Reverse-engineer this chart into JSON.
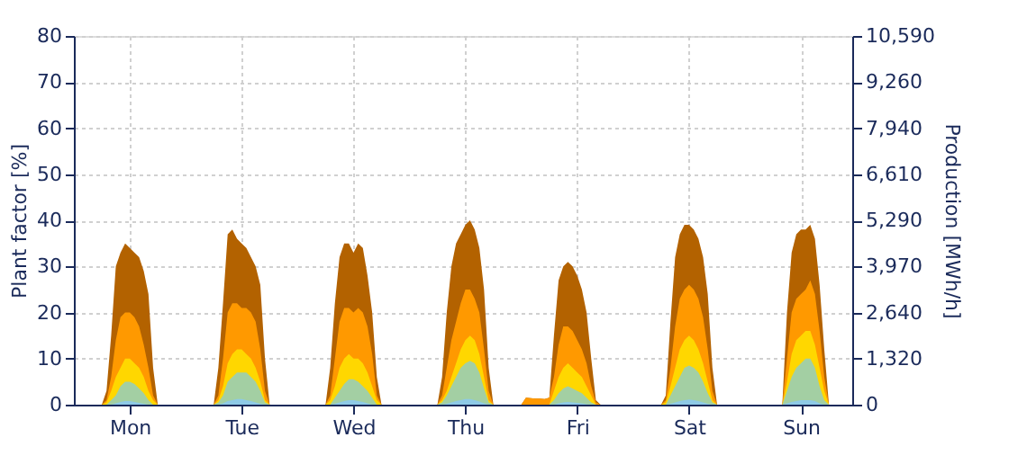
{
  "chart_data": {
    "type": "area",
    "ylabel": "Plant factor [%]",
    "y2label": "Production [MWh/h]",
    "categories": [
      null,
      null,
      null,
      null,
      null,
      null,
      null,
      null,
      null,
      null,
      null,
      null,
      "Mon",
      null,
      null,
      null,
      null,
      null,
      null,
      null,
      null,
      null,
      null,
      null,
      null,
      null,
      null,
      null,
      null,
      null,
      null,
      null,
      null,
      null,
      null,
      null,
      "Tue",
      null,
      null,
      null,
      null,
      null,
      null,
      null,
      null,
      null,
      null,
      null,
      null,
      null,
      null,
      null,
      null,
      null,
      null,
      null,
      null,
      null,
      null,
      null,
      "Wed",
      null,
      null,
      null,
      null,
      null,
      null,
      null,
      null,
      null,
      null,
      null,
      null,
      null,
      null,
      null,
      null,
      null,
      null,
      null,
      null,
      null,
      null,
      null,
      "Thu",
      null,
      null,
      null,
      null,
      null,
      null,
      null,
      null,
      null,
      null,
      null,
      null,
      null,
      null,
      null,
      null,
      null,
      null,
      null,
      null,
      null,
      null,
      null,
      "Fri",
      null,
      null,
      null,
      null,
      null,
      null,
      null,
      null,
      null,
      null,
      null,
      null,
      null,
      null,
      null,
      null,
      null,
      null,
      null,
      null,
      null,
      null,
      null,
      "Sat",
      null,
      null,
      null,
      null,
      null,
      null,
      null,
      null,
      null,
      null,
      null,
      null,
      null,
      null,
      null,
      null,
      null,
      null,
      null,
      null,
      null,
      null,
      null,
      "Sun",
      null,
      null,
      null,
      null,
      null,
      null,
      null,
      null,
      null,
      null,
      null
    ],
    "series": [
      {
        "color": "#b36200",
        "values": [
          0,
          0,
          0,
          0,
          0,
          0,
          0,
          3,
          15,
          30,
          33,
          35,
          34,
          33,
          32,
          29,
          24,
          8,
          0,
          0,
          0,
          0,
          0,
          0,
          0,
          0,
          0,
          0,
          0,
          0,
          0,
          8,
          22,
          37,
          38,
          36,
          35,
          34,
          32,
          30,
          26,
          10,
          0,
          0,
          0,
          0,
          0,
          0,
          0,
          0,
          0,
          0,
          0,
          0,
          0,
          8,
          22,
          32,
          35,
          35,
          33,
          35,
          34,
          28,
          20,
          6,
          0,
          0,
          0,
          0,
          0,
          0,
          0,
          0,
          0,
          0,
          0,
          0,
          0,
          6,
          20,
          30,
          35,
          37,
          39,
          40,
          38,
          34,
          25,
          8,
          0,
          0,
          0,
          0,
          0,
          0,
          0,
          1.5,
          1.4,
          1.3,
          1.3,
          1.2,
          1.5,
          15,
          27,
          30,
          31,
          30,
          28,
          25,
          20,
          10,
          1,
          0,
          0,
          0,
          0,
          0,
          0,
          0,
          0,
          0,
          0,
          0,
          0,
          0,
          0,
          2,
          18,
          32,
          37,
          39,
          39,
          38,
          36,
          32,
          24,
          8,
          0,
          0,
          0,
          0,
          0,
          0,
          0,
          0,
          0,
          0,
          0,
          0,
          0,
          0,
          0,
          20,
          33,
          37,
          38,
          38,
          39,
          36,
          26,
          12,
          0,
          0,
          0,
          0,
          0,
          0
        ]
      },
      {
        "color": "#ff9900",
        "values": [
          0,
          0,
          0,
          0,
          0,
          0,
          0,
          1,
          6,
          14,
          19,
          20,
          20,
          19,
          17,
          13,
          8,
          2,
          0,
          0,
          0,
          0,
          0,
          0,
          0,
          0,
          0,
          0,
          0,
          0,
          0,
          2,
          10,
          20,
          22,
          22,
          21,
          21,
          20,
          18,
          12,
          3,
          0,
          0,
          0,
          0,
          0,
          0,
          0,
          0,
          0,
          0,
          0,
          0,
          0,
          2,
          10,
          18,
          21,
          21,
          20,
          21,
          20,
          17,
          11,
          2,
          0,
          0,
          0,
          0,
          0,
          0,
          0,
          0,
          0,
          0,
          0,
          0,
          0,
          2,
          8,
          14,
          18,
          22,
          25,
          25,
          23,
          20,
          12,
          3,
          0,
          0,
          0,
          0,
          0,
          0,
          0,
          1.5,
          1.4,
          1.3,
          1.3,
          1.2,
          1.5,
          6,
          13,
          17,
          17,
          16,
          14,
          12,
          9,
          4,
          0.5,
          0,
          0,
          0,
          0,
          0,
          0,
          0,
          0,
          0,
          0,
          0,
          0,
          0,
          0,
          1,
          8,
          17,
          23,
          25,
          26,
          25,
          23,
          19,
          12,
          3,
          0,
          0,
          0,
          0,
          0,
          0,
          0,
          0,
          0,
          0,
          0,
          0,
          0,
          0,
          0,
          10,
          20,
          23,
          24,
          25,
          27,
          24,
          16,
          6,
          0,
          0,
          0,
          0,
          0,
          0
        ]
      },
      {
        "color": "#ffd700",
        "values": [
          0,
          0,
          0,
          0,
          0,
          0,
          0,
          0.5,
          3,
          6,
          8,
          10,
          10,
          9,
          8,
          6,
          3,
          1,
          0,
          0,
          0,
          0,
          0,
          0,
          0,
          0,
          0,
          0,
          0,
          0,
          0,
          1,
          4,
          9,
          11,
          12,
          12,
          11,
          10,
          8,
          5,
          1,
          0,
          0,
          0,
          0,
          0,
          0,
          0,
          0,
          0,
          0,
          0,
          0,
          0,
          1,
          4,
          8,
          10,
          11,
          10,
          10,
          9,
          7,
          4,
          1,
          0,
          0,
          0,
          0,
          0,
          0,
          0,
          0,
          0,
          0,
          0,
          0,
          0,
          1,
          3,
          6,
          9,
          12,
          14,
          15,
          14,
          11,
          6,
          1,
          0,
          0,
          0,
          0,
          0,
          0,
          0,
          0,
          0,
          0,
          0,
          0,
          0,
          3,
          6,
          8,
          9,
          8,
          7,
          6,
          4,
          2,
          0,
          0,
          0,
          0,
          0,
          0,
          0,
          0,
          0,
          0,
          0,
          0,
          0,
          0,
          0,
          0.5,
          4,
          8,
          12,
          14,
          15,
          14,
          12,
          9,
          5,
          1,
          0,
          0,
          0,
          0,
          0,
          0,
          0,
          0,
          0,
          0,
          0,
          0,
          0,
          0,
          0,
          5,
          11,
          14,
          15,
          16,
          16,
          13,
          8,
          3,
          0,
          0,
          0,
          0,
          0,
          0
        ]
      },
      {
        "color": "#a3cfa3",
        "values": [
          0,
          0,
          0,
          0,
          0,
          0,
          0,
          0,
          1,
          2,
          4,
          5,
          5,
          4.5,
          3.5,
          2.5,
          1,
          0,
          0,
          0,
          0,
          0,
          0,
          0,
          0,
          0,
          0,
          0,
          0,
          0,
          0,
          0.5,
          2,
          5,
          6,
          7,
          7,
          7,
          6,
          5,
          3,
          0.5,
          0,
          0,
          0,
          0,
          0,
          0,
          0,
          0,
          0,
          0,
          0,
          0,
          0,
          0,
          1.5,
          3,
          4.5,
          5.5,
          5.5,
          5,
          4,
          3,
          1.5,
          0,
          0,
          0,
          0,
          0,
          0,
          0,
          0,
          0,
          0,
          0,
          0,
          0,
          0,
          0.5,
          2,
          4,
          6,
          8,
          9,
          9.5,
          9,
          7,
          3.5,
          0.5,
          0,
          0,
          0,
          0,
          0,
          0,
          0,
          0,
          0,
          0,
          0,
          0,
          0,
          1,
          2.5,
          3.5,
          4,
          3.5,
          3,
          2.5,
          1.5,
          0.5,
          0,
          0,
          0,
          0,
          0,
          0,
          0,
          0,
          0,
          0,
          0,
          0,
          0,
          0,
          0,
          0,
          2,
          4,
          6,
          8,
          8.5,
          8,
          7,
          5,
          2.5,
          0.5,
          0,
          0,
          0,
          0,
          0,
          0,
          0,
          0,
          0,
          0,
          0,
          0,
          0,
          0,
          0,
          3,
          6,
          8,
          9,
          10,
          10,
          8,
          4,
          1,
          0,
          0,
          0,
          0,
          0,
          0
        ]
      },
      {
        "color": "#8ecae6",
        "values": [
          0,
          0,
          0,
          0,
          0,
          0,
          0,
          0,
          0,
          0.3,
          0.6,
          0.8,
          0.8,
          0.6,
          0.4,
          0.2,
          0,
          0,
          0,
          0,
          0,
          0,
          0,
          0,
          0,
          0,
          0,
          0,
          0,
          0,
          0,
          0,
          0.3,
          0.8,
          1,
          1.2,
          1.2,
          1,
          0.8,
          0.5,
          0.2,
          0,
          0,
          0,
          0,
          0,
          0,
          0,
          0,
          0,
          0,
          0,
          0,
          0,
          0,
          0,
          0.2,
          0.5,
          0.8,
          1,
          1,
          0.8,
          0.6,
          0.3,
          0,
          0,
          0,
          0,
          0,
          0,
          0,
          0,
          0,
          0,
          0,
          0,
          0,
          0,
          0,
          0,
          0.2,
          0.5,
          0.8,
          1,
          1.2,
          1.2,
          1,
          0.7,
          0.3,
          0,
          0,
          0,
          0,
          0,
          0,
          0,
          0,
          0,
          0,
          0,
          0,
          0,
          0,
          0,
          0.3,
          0.5,
          0.6,
          0.5,
          0.4,
          0.3,
          0.1,
          0,
          0,
          0,
          0,
          0,
          0,
          0,
          0,
          0,
          0,
          0,
          0,
          0,
          0,
          0,
          0,
          0,
          0.2,
          0.5,
          0.8,
          1,
          1.1,
          1,
          0.8,
          0.5,
          0.2,
          0,
          0,
          0,
          0,
          0,
          0,
          0,
          0,
          0,
          0,
          0,
          0,
          0,
          0,
          0,
          0,
          0.3,
          0.6,
          0.8,
          1,
          1,
          1,
          0.8,
          0.3,
          0,
          0,
          0,
          0,
          0,
          0,
          0
        ]
      }
    ],
    "ylim": [
      0,
      80
    ],
    "yticks": [
      0,
      10,
      20,
      30,
      40,
      50,
      60,
      70,
      80
    ],
    "y2lim": [
      0,
      10590
    ],
    "y2ticks": [
      0,
      {
        "value": 1320,
        "label": "1,320"
      },
      {
        "value": 2640,
        "label": "2,640"
      },
      {
        "value": 3970,
        "label": "3,970"
      },
      {
        "value": 5290,
        "label": "5,290"
      },
      {
        "value": 6610,
        "label": "6,610"
      },
      {
        "value": 7940,
        "label": "7,940"
      },
      {
        "value": 9260,
        "label": "9,260"
      },
      {
        "value": 10590,
        "label": "10,590"
      }
    ],
    "grid": true
  }
}
